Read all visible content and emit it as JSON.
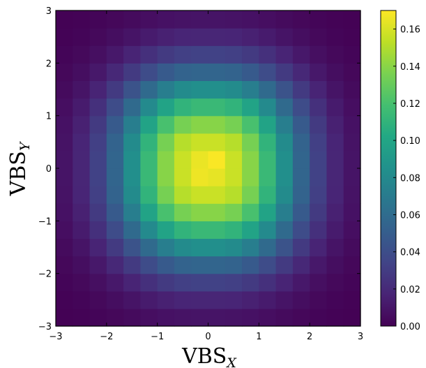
{
  "chart_data": {
    "type": "heatmap",
    "title": "",
    "xlabel": "VBS",
    "xlabel_sub": "X",
    "ylabel": "VBS",
    "ylabel_sub": "Y",
    "xlim": [
      -3,
      3
    ],
    "ylim": [
      -3,
      3
    ],
    "x_ticks": [
      -3,
      -2,
      -1,
      0,
      1,
      2,
      3
    ],
    "y_ticks": [
      -3,
      -2,
      -1,
      0,
      1,
      2,
      3
    ],
    "x_tick_labels": [
      "−3",
      "−2",
      "−1",
      "0",
      "1",
      "2",
      "3"
    ],
    "y_tick_labels": [
      "−3",
      "−2",
      "−1",
      "0",
      "1",
      "2",
      "3"
    ],
    "bins": 18,
    "bin_edges": [
      -3.0,
      -2.6667,
      -2.3333,
      -2.0,
      -1.6667,
      -1.3333,
      -1.0,
      -0.6667,
      -0.3333,
      0.0,
      0.3333,
      0.6667,
      1.0,
      1.3333,
      1.6667,
      2.0,
      2.3333,
      2.6667,
      3.0
    ],
    "values_note": "",
    "values": [
      [
        0.0005,
        0.001,
        0.0019,
        0.0032,
        0.0048,
        0.0065,
        0.008,
        0.0089,
        0.0092,
        0.0092,
        0.0089,
        0.008,
        0.0065,
        0.0048,
        0.0032,
        0.0019,
        0.001,
        0.0005
      ],
      [
        0.001,
        0.002,
        0.0037,
        0.0062,
        0.0094,
        0.0128,
        0.0157,
        0.0176,
        0.0182,
        0.0182,
        0.0176,
        0.0157,
        0.0128,
        0.0094,
        0.0062,
        0.0037,
        0.002,
        0.001
      ],
      [
        0.0019,
        0.0037,
        0.0068,
        0.0113,
        0.0171,
        0.0233,
        0.0285,
        0.032,
        0.0331,
        0.0331,
        0.032,
        0.0285,
        0.0233,
        0.0171,
        0.0113,
        0.0068,
        0.0037,
        0.0019
      ],
      [
        0.0032,
        0.0062,
        0.0113,
        0.0189,
        0.0286,
        0.0389,
        0.0477,
        0.0535,
        0.0553,
        0.0553,
        0.0535,
        0.0477,
        0.0389,
        0.0286,
        0.0189,
        0.0113,
        0.0062,
        0.0032
      ],
      [
        0.0048,
        0.0094,
        0.0171,
        0.0286,
        0.0432,
        0.0588,
        0.0721,
        0.0808,
        0.0836,
        0.0836,
        0.0808,
        0.0721,
        0.0588,
        0.0432,
        0.0286,
        0.0171,
        0.0094,
        0.0048
      ],
      [
        0.0065,
        0.0128,
        0.0233,
        0.0389,
        0.0588,
        0.08,
        0.0981,
        0.11,
        0.1138,
        0.1138,
        0.11,
        0.0981,
        0.08,
        0.0588,
        0.0389,
        0.0233,
        0.0128,
        0.0065
      ],
      [
        0.008,
        0.0157,
        0.0285,
        0.0477,
        0.0721,
        0.0981,
        0.1203,
        0.1348,
        0.1394,
        0.1394,
        0.1348,
        0.1203,
        0.0981,
        0.0721,
        0.0477,
        0.0285,
        0.0157,
        0.008
      ],
      [
        0.0089,
        0.0176,
        0.032,
        0.0535,
        0.0808,
        0.11,
        0.1348,
        0.1512,
        0.1563,
        0.1563,
        0.1512,
        0.1348,
        0.11,
        0.0808,
        0.0535,
        0.032,
        0.0176,
        0.0089
      ],
      [
        0.0092,
        0.0182,
        0.0331,
        0.0553,
        0.0836,
        0.1138,
        0.1394,
        0.1563,
        0.166,
        0.164,
        0.1563,
        0.1394,
        0.1138,
        0.0836,
        0.0553,
        0.0331,
        0.0182,
        0.0092
      ],
      [
        0.0092,
        0.0182,
        0.0331,
        0.0553,
        0.0836,
        0.1138,
        0.1394,
        0.1563,
        0.165,
        0.169,
        0.1563,
        0.1394,
        0.1138,
        0.0836,
        0.0553,
        0.0331,
        0.0182,
        0.0092
      ],
      [
        0.0089,
        0.0176,
        0.032,
        0.0535,
        0.0808,
        0.11,
        0.1348,
        0.1512,
        0.1563,
        0.1563,
        0.1512,
        0.1348,
        0.11,
        0.0808,
        0.0535,
        0.032,
        0.0176,
        0.0089
      ],
      [
        0.008,
        0.0157,
        0.0285,
        0.0477,
        0.0721,
        0.0981,
        0.1203,
        0.1348,
        0.1394,
        0.1394,
        0.1348,
        0.1203,
        0.0981,
        0.0721,
        0.0477,
        0.0285,
        0.0157,
        0.008
      ],
      [
        0.0065,
        0.0128,
        0.0233,
        0.0389,
        0.0588,
        0.08,
        0.0981,
        0.11,
        0.1138,
        0.1138,
        0.11,
        0.0981,
        0.08,
        0.0588,
        0.0389,
        0.0233,
        0.0128,
        0.0065
      ],
      [
        0.0048,
        0.0094,
        0.0171,
        0.0286,
        0.0432,
        0.0588,
        0.0721,
        0.0808,
        0.0836,
        0.0836,
        0.0808,
        0.0721,
        0.0588,
        0.0432,
        0.0286,
        0.0171,
        0.0094,
        0.0048
      ],
      [
        0.0032,
        0.0062,
        0.0113,
        0.0189,
        0.0286,
        0.0389,
        0.0477,
        0.0535,
        0.0553,
        0.0553,
        0.0535,
        0.0477,
        0.0389,
        0.0286,
        0.0189,
        0.0113,
        0.0062,
        0.0032
      ],
      [
        0.0019,
        0.0037,
        0.0068,
        0.0113,
        0.0171,
        0.0233,
        0.0285,
        0.032,
        0.0331,
        0.0331,
        0.032,
        0.0285,
        0.0233,
        0.0171,
        0.0113,
        0.0068,
        0.0037,
        0.0019
      ],
      [
        0.001,
        0.002,
        0.0037,
        0.0062,
        0.0094,
        0.0128,
        0.0157,
        0.0176,
        0.0182,
        0.0182,
        0.0176,
        0.0157,
        0.0128,
        0.0094,
        0.0062,
        0.0037,
        0.002,
        0.001
      ],
      [
        0.0005,
        0.001,
        0.0019,
        0.0032,
        0.0048,
        0.0065,
        0.008,
        0.0089,
        0.0092,
        0.0092,
        0.0089,
        0.008,
        0.0065,
        0.0048,
        0.0032,
        0.0019,
        0.001,
        0.0005
      ]
    ],
    "colorbar": {
      "colormap": "viridis",
      "vmin": 0.0,
      "vmax": 0.17,
      "ticks": [
        0.0,
        0.02,
        0.04,
        0.06,
        0.08,
        0.1,
        0.12,
        0.14,
        0.16
      ],
      "tick_labels": [
        "0.00",
        "0.02",
        "0.04",
        "0.06",
        "0.08",
        "0.10",
        "0.12",
        "0.14",
        "0.16"
      ]
    },
    "grid": false,
    "legend": "none"
  }
}
